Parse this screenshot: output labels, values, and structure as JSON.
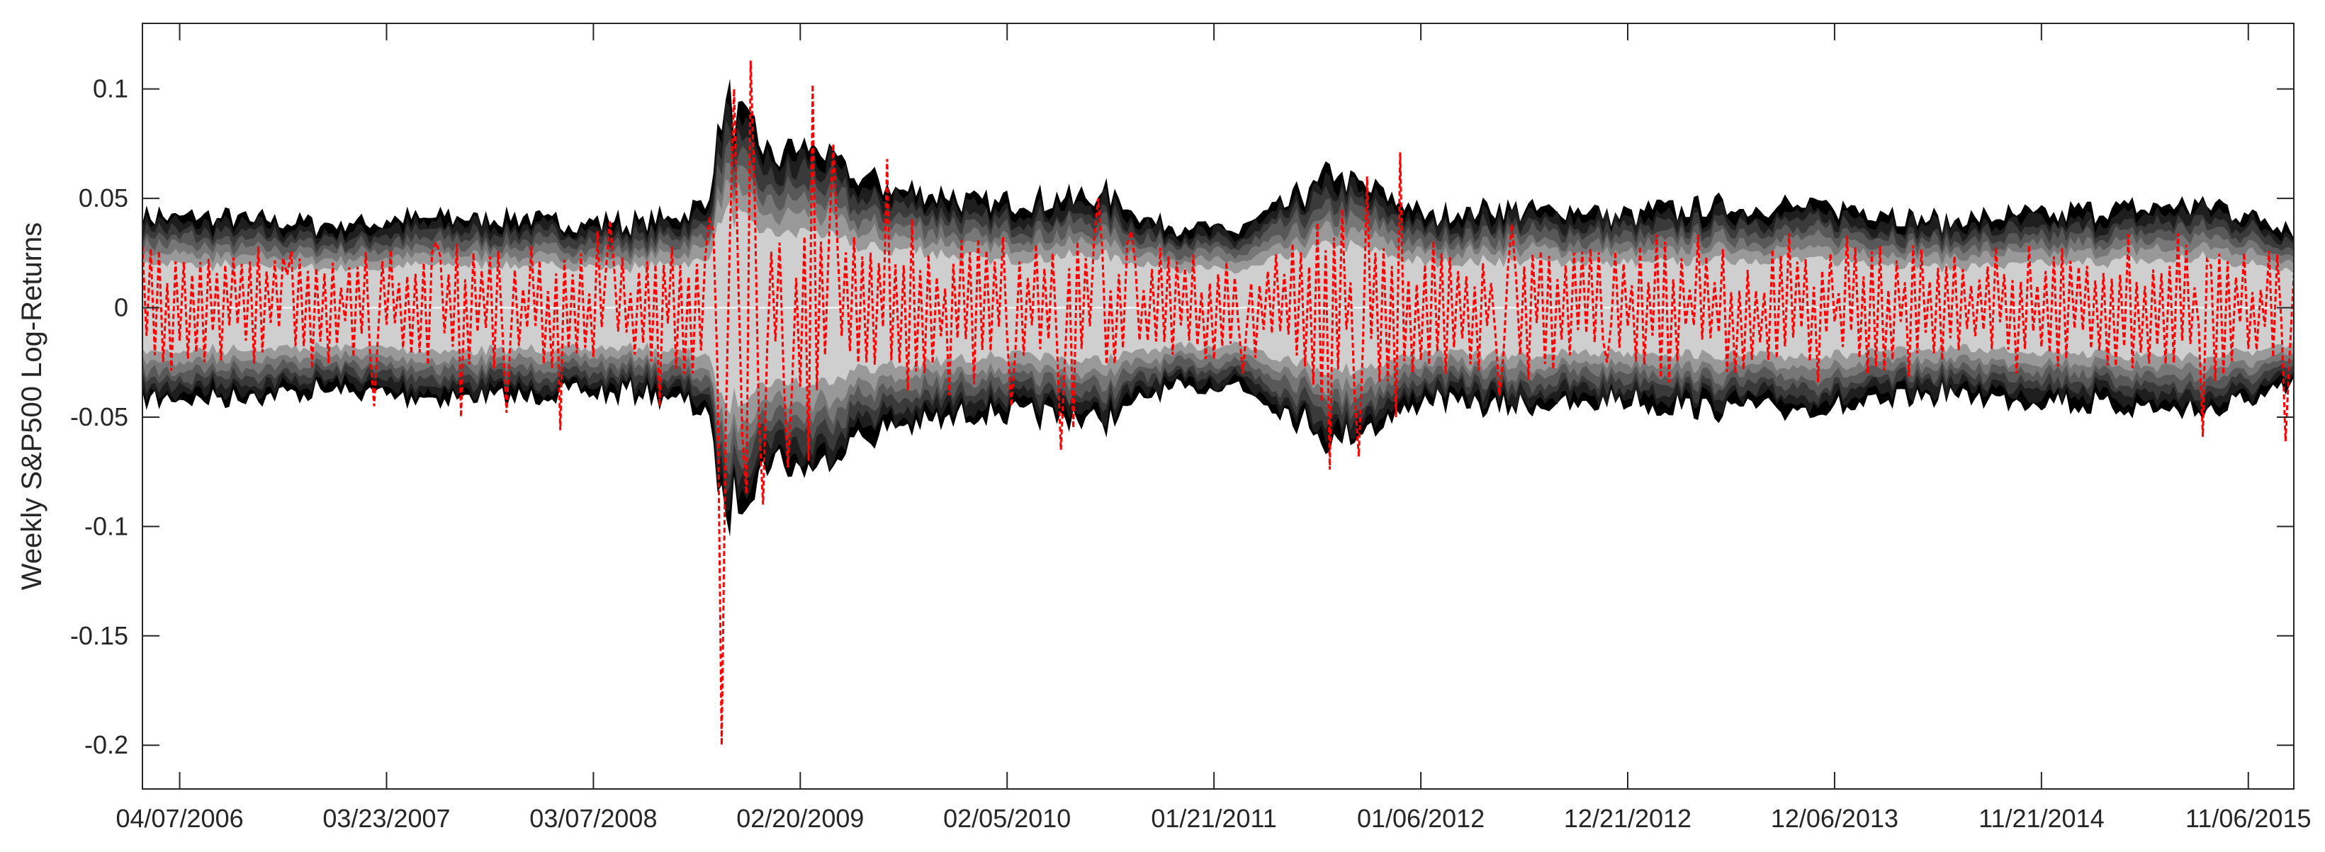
{
  "chart_data": {
    "type": "area",
    "title": "",
    "xlabel": "",
    "ylabel": "Weekly S&P500 Log-Returns",
    "ylim": [
      -0.22,
      0.13
    ],
    "ytick_values": [
      -0.2,
      -0.15,
      -0.1,
      -0.05,
      0,
      0.05,
      0.1
    ],
    "ytick_labels": [
      "-0.2",
      "-0.15",
      "-0.1",
      "-0.05",
      "0",
      "0.05",
      "0.1"
    ],
    "xtick_labels": [
      "04/07/2006",
      "03/23/2007",
      "03/07/2008",
      "02/20/2009",
      "02/05/2010",
      "01/21/2011",
      "01/06/2012",
      "12/21/2012",
      "12/06/2013",
      "11/21/2014",
      "11/06/2015"
    ],
    "x_range": [
      "2006-02-03",
      "2016-01-22"
    ],
    "grid": false,
    "legend": "none",
    "band_colors": [
      "#000000",
      "#1e1e1e",
      "#3a3a3a",
      "#585858",
      "#777777",
      "#999999",
      "#cfcfcf"
    ],
    "band_widths_relative": [
      1.0,
      0.92,
      0.84,
      0.76,
      0.67,
      0.58,
      0.47
    ],
    "band_half_width_anchors": [
      [
        "2006-02-03",
        0.043
      ],
      [
        "2006-06-01",
        0.041
      ],
      [
        "2007-01-01",
        0.038
      ],
      [
        "2007-07-15",
        0.042
      ],
      [
        "2008-01-01",
        0.04
      ],
      [
        "2008-06-01",
        0.039
      ],
      [
        "2008-09-15",
        0.047
      ],
      [
        "2008-10-15",
        0.095
      ],
      [
        "2008-11-15",
        0.085
      ],
      [
        "2009-01-01",
        0.07
      ],
      [
        "2009-03-15",
        0.075
      ],
      [
        "2009-06-01",
        0.058
      ],
      [
        "2009-09-01",
        0.055
      ],
      [
        "2010-01-01",
        0.047
      ],
      [
        "2010-05-15",
        0.05
      ],
      [
        "2010-07-15",
        0.052
      ],
      [
        "2010-10-15",
        0.04
      ],
      [
        "2011-03-01",
        0.035
      ],
      [
        "2011-08-15",
        0.062
      ],
      [
        "2011-10-15",
        0.055
      ],
      [
        "2012-01-15",
        0.042
      ],
      [
        "2012-06-01",
        0.046
      ],
      [
        "2013-01-01",
        0.043
      ],
      [
        "2013-06-01",
        0.047
      ],
      [
        "2014-01-01",
        0.046
      ],
      [
        "2014-06-01",
        0.04
      ],
      [
        "2015-01-01",
        0.043
      ],
      [
        "2015-09-01",
        0.048
      ],
      [
        "2016-01-22",
        0.037
      ]
    ],
    "series": [
      {
        "style": "dashed",
        "color": "#ff0000",
        "values": [
          [
            "2006-02-03",
            0.028
          ],
          [
            "2006-04-07",
            -0.015
          ],
          [
            "2006-05-19",
            -0.025
          ],
          [
            "2006-07-21",
            0.02
          ],
          [
            "2006-10-06",
            0.015
          ],
          [
            "2007-02-27",
            -0.045
          ],
          [
            "2007-06-15",
            0.03
          ],
          [
            "2007-07-27",
            -0.05
          ],
          [
            "2007-08-17",
            0.025
          ],
          [
            "2007-10-12",
            -0.048
          ],
          [
            "2007-11-23",
            0.028
          ],
          [
            "2008-01-11",
            -0.056
          ],
          [
            "2008-03-14",
            0.035
          ],
          [
            "2008-04-04",
            0.04
          ],
          [
            "2008-06-27",
            -0.045
          ],
          [
            "2008-09-19",
            0.04
          ],
          [
            "2008-10-10",
            -0.2
          ],
          [
            "2008-11-03",
            0.1
          ],
          [
            "2008-11-21",
            -0.085
          ],
          [
            "2008-11-28",
            0.113
          ],
          [
            "2008-12-19",
            -0.09
          ],
          [
            "2009-01-30",
            -0.073
          ],
          [
            "2009-03-06",
            -0.07
          ],
          [
            "2009-03-13",
            0.102
          ],
          [
            "2009-04-17",
            0.075
          ],
          [
            "2009-06-12",
            -0.025
          ],
          [
            "2009-07-17",
            0.068
          ],
          [
            "2009-10-30",
            -0.04
          ],
          [
            "2010-02-12",
            -0.045
          ],
          [
            "2010-05-07",
            -0.065
          ],
          [
            "2010-05-28",
            -0.055
          ],
          [
            "2010-07-09",
            0.05
          ],
          [
            "2010-09-03",
            0.035
          ],
          [
            "2011-03-11",
            -0.03
          ],
          [
            "2011-08-05",
            -0.074
          ],
          [
            "2011-08-26",
            0.045
          ],
          [
            "2011-09-23",
            -0.068
          ],
          [
            "2011-10-07",
            0.06
          ],
          [
            "2011-11-25",
            -0.05
          ],
          [
            "2011-12-02",
            0.071
          ],
          [
            "2012-05-18",
            -0.04
          ],
          [
            "2012-06-08",
            0.038
          ],
          [
            "2012-11-16",
            -0.025
          ],
          [
            "2013-06-21",
            -0.03
          ],
          [
            "2014-01-31",
            -0.03
          ],
          [
            "2014-10-10",
            -0.03
          ],
          [
            "2015-08-21",
            -0.059
          ],
          [
            "2015-08-28",
            0.022
          ],
          [
            "2016-01-08",
            -0.061
          ],
          [
            "2016-01-22",
            0.015
          ]
        ]
      }
    ]
  }
}
